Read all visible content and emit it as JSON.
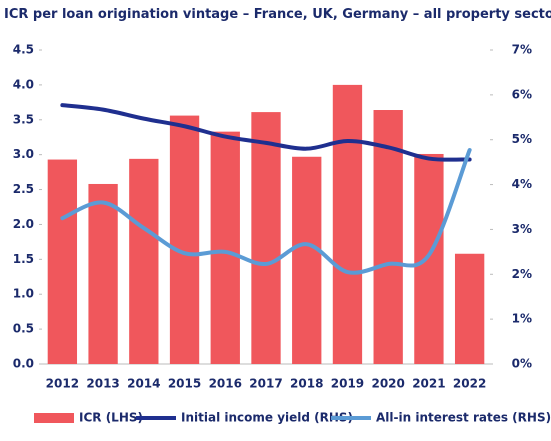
{
  "chart_data": {
    "type": "bar",
    "title": "ICR per loan origination vintage – France, UK, Germany – all property sectors average",
    "categories": [
      "2012",
      "2013",
      "2014",
      "2015",
      "2016",
      "2017",
      "2018",
      "2019",
      "2020",
      "2021",
      "2022"
    ],
    "series": [
      {
        "name": "ICR (LHS)",
        "type": "bar",
        "axis": "y",
        "color": "#f0575c",
        "values": [
          2.93,
          2.58,
          2.94,
          3.56,
          3.33,
          3.61,
          2.97,
          4.0,
          3.64,
          3.01,
          1.58
        ]
      },
      {
        "name": "Initial income yield (RHS)",
        "type": "line",
        "axis": "y2",
        "color": "#1f2f8f",
        "values": [
          5.77,
          5.67,
          5.47,
          5.3,
          5.07,
          4.93,
          4.8,
          4.97,
          4.83,
          4.58,
          4.56
        ]
      },
      {
        "name": "All-in interest rates (RHS)",
        "type": "line",
        "axis": "y2",
        "color": "#5b9bd5",
        "values": [
          3.25,
          3.6,
          3.03,
          2.47,
          2.5,
          2.23,
          2.67,
          2.05,
          2.23,
          2.43,
          4.77
        ]
      }
    ],
    "ylim": [
      0,
      4.5
    ],
    "yticks": [
      {
        "value": 0,
        "label": "0.0"
      },
      0.5,
      {
        "value": 1,
        "label": "1.0"
      },
      1.5,
      {
        "value": 2,
        "label": "2.0"
      },
      2.5,
      {
        "value": 3,
        "label": "3.0"
      },
      3.5,
      {
        "value": 4,
        "label": "4.0"
      },
      4.5
    ],
    "y2lim": [
      0,
      7
    ],
    "y2ticks": [
      {
        "value": 0,
        "label": "0%"
      },
      {
        "value": 1,
        "label": "1%"
      },
      {
        "value": 2,
        "label": "2%"
      },
      {
        "value": 3,
        "label": "3%"
      },
      {
        "value": 4,
        "label": "4%"
      },
      {
        "value": 5,
        "label": "5%"
      },
      {
        "value": 6,
        "label": "6%"
      },
      {
        "value": 7,
        "label": "7%"
      }
    ],
    "legend": "bottom"
  }
}
